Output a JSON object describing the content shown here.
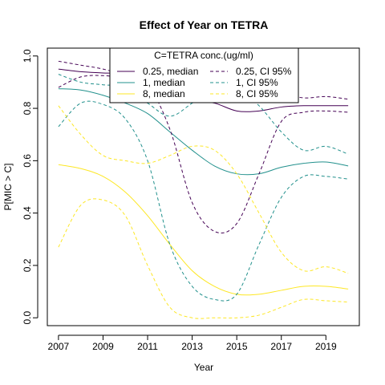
{
  "chart_data": {
    "type": "line",
    "title": "Effect of Year on TETRA",
    "xlabel": "Year",
    "ylabel": "P[MIC > C]",
    "xlim": [
      2006.5,
      2020.5
    ],
    "ylim": [
      -0.03,
      1.03
    ],
    "xticks": [
      2007,
      2009,
      2011,
      2013,
      2015,
      2017,
      2019
    ],
    "yticks": [
      0.0,
      0.2,
      0.4,
      0.6,
      0.8,
      1.0
    ],
    "ytick_labels": [
      "0.0",
      "0.2",
      "0.4",
      "0.6",
      "0.8",
      "1.0"
    ],
    "grid": false,
    "legend": {
      "title": "C=TETRA conc.(ug/ml)",
      "placement": "top-center",
      "columns": 2
    },
    "series": [
      {
        "name": "0.25, median",
        "color": "#440154",
        "style": "solid",
        "x": [
          2007,
          2008,
          2009,
          2010,
          2011,
          2012,
          2013,
          2014,
          2015,
          2016,
          2017,
          2018,
          2019,
          2020
        ],
        "y": [
          0.95,
          0.94,
          0.935,
          0.93,
          0.89,
          0.84,
          0.83,
          0.82,
          0.79,
          0.79,
          0.805,
          0.81,
          0.81,
          0.81
        ]
      },
      {
        "name": "1, median",
        "color": "#21908C",
        "style": "solid",
        "x": [
          2007,
          2008,
          2009,
          2010,
          2011,
          2012,
          2013,
          2014,
          2015,
          2016,
          2017,
          2018,
          2019,
          2020
        ],
        "y": [
          0.875,
          0.87,
          0.85,
          0.82,
          0.78,
          0.71,
          0.64,
          0.58,
          0.55,
          0.55,
          0.575,
          0.59,
          0.595,
          0.58
        ]
      },
      {
        "name": "8, median",
        "color": "#FDE725",
        "style": "solid",
        "x": [
          2007,
          2008,
          2009,
          2010,
          2011,
          2012,
          2013,
          2014,
          2015,
          2016,
          2017,
          2018,
          2019,
          2020
        ],
        "y": [
          0.585,
          0.57,
          0.54,
          0.48,
          0.39,
          0.28,
          0.18,
          0.12,
          0.09,
          0.09,
          0.105,
          0.12,
          0.12,
          0.11
        ]
      },
      {
        "name": "0.25, CI 95%",
        "color": "#440154",
        "style": "dashed",
        "x": [
          2007,
          2008,
          2009,
          2010,
          2011,
          2012,
          2013,
          2014,
          2015,
          2016,
          2017,
          2018,
          2019,
          2020
        ],
        "y": [
          0.98,
          0.965,
          0.95,
          0.925,
          0.89,
          0.72,
          0.44,
          0.33,
          0.36,
          0.55,
          0.75,
          0.785,
          0.79,
          0.785
        ]
      },
      {
        "name": "0.25, CI 95%",
        "color": "#440154",
        "style": "dashed",
        "x": [
          2007,
          2008,
          2009,
          2010,
          2011,
          2012,
          2013,
          2014,
          2015,
          2016,
          2017,
          2018,
          2019,
          2020
        ],
        "y": [
          0.88,
          0.92,
          0.925,
          0.915,
          0.9,
          0.885,
          0.86,
          0.86,
          0.875,
          0.88,
          0.86,
          0.84,
          0.845,
          0.835
        ]
      },
      {
        "name": "1, CI 95%",
        "color": "#21908C",
        "style": "dashed",
        "x": [
          2007,
          2008,
          2009,
          2010,
          2011,
          2012,
          2013,
          2014,
          2015,
          2016,
          2017,
          2018,
          2019,
          2020
        ],
        "y": [
          0.93,
          0.9,
          0.89,
          0.88,
          0.82,
          0.77,
          0.82,
          0.88,
          0.875,
          0.81,
          0.71,
          0.64,
          0.655,
          0.625
        ]
      },
      {
        "name": "1, CI 95%",
        "color": "#21908C",
        "style": "dashed",
        "x": [
          2007,
          2008,
          2009,
          2010,
          2011,
          2012,
          2013,
          2014,
          2015,
          2016,
          2017,
          2018,
          2019,
          2020
        ],
        "y": [
          0.73,
          0.82,
          0.815,
          0.76,
          0.6,
          0.28,
          0.12,
          0.07,
          0.09,
          0.28,
          0.46,
          0.54,
          0.54,
          0.53
        ]
      },
      {
        "name": "8, CI 95%",
        "color": "#FDE725",
        "style": "dashed",
        "x": [
          2007,
          2008,
          2009,
          2010,
          2011,
          2012,
          2013,
          2014,
          2015,
          2016,
          2017,
          2018,
          2019,
          2020
        ],
        "y": [
          0.81,
          0.7,
          0.62,
          0.6,
          0.59,
          0.62,
          0.655,
          0.64,
          0.55,
          0.4,
          0.25,
          0.18,
          0.195,
          0.17
        ]
      },
      {
        "name": "8, CI 95%",
        "color": "#FDE725",
        "style": "dashed",
        "x": [
          2007,
          2008,
          2009,
          2010,
          2011,
          2012,
          2013,
          2014,
          2015,
          2016,
          2017,
          2018,
          2019,
          2020
        ],
        "y": [
          0.27,
          0.43,
          0.45,
          0.39,
          0.2,
          0.04,
          0.0,
          0.0,
          0.0,
          0.01,
          0.04,
          0.07,
          0.065,
          0.06
        ]
      }
    ]
  }
}
